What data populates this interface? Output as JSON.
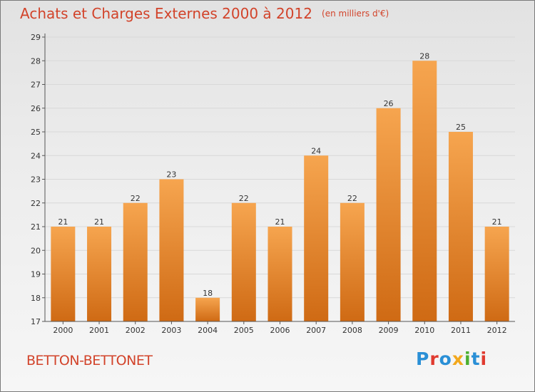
{
  "header": {
    "title": "Achats et Charges Externes 2000 à 2012",
    "subtitle": "(en milliers d'€)"
  },
  "footer": {
    "town": "BETTON-BETTONET",
    "logo_text": "Proxiti",
    "logo_colors": [
      "#2a8fd6",
      "#e03a2f",
      "#2a8fd6",
      "#f2a81d",
      "#4caf2f",
      "#2a8fd6",
      "#e03a2f"
    ]
  },
  "colors": {
    "bar_light": "#f6a54f",
    "bar_dark": "#cf6a14",
    "axis": "#555555",
    "grid": "#d8d8d8"
  },
  "chart_data": {
    "type": "bar",
    "categories": [
      "2000",
      "2001",
      "2002",
      "2003",
      "2004",
      "2005",
      "2006",
      "2007",
      "2008",
      "2009",
      "2010",
      "2011",
      "2012"
    ],
    "values": [
      21,
      21,
      22,
      23,
      18,
      22,
      21,
      24,
      22,
      26,
      28,
      25,
      21
    ],
    "ylim": [
      17,
      29
    ],
    "yticks": [
      "17",
      "18",
      "19",
      "20",
      "21",
      "22",
      "23",
      "24",
      "25",
      "26",
      "27",
      "28",
      "29"
    ],
    "grid": "horizontal"
  }
}
